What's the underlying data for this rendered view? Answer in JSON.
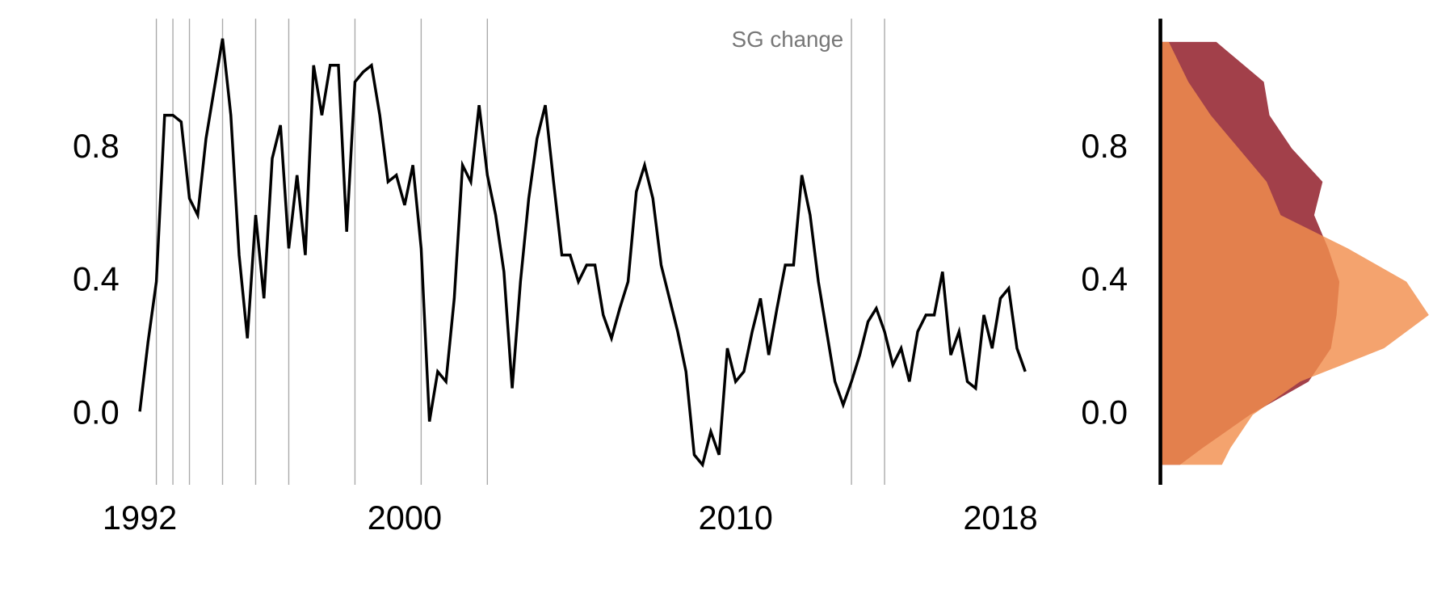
{
  "chart_data": [
    {
      "type": "line",
      "annotation": "SG change",
      "x": [
        1992,
        1992.25,
        1992.5,
        1992.75,
        1993,
        1993.25,
        1993.5,
        1993.75,
        1994,
        1994.25,
        1994.5,
        1994.75,
        1995,
        1995.25,
        1995.5,
        1995.75,
        1996,
        1996.25,
        1996.5,
        1996.75,
        1997,
        1997.25,
        1997.5,
        1997.75,
        1998,
        1998.25,
        1998.5,
        1998.75,
        1999,
        1999.25,
        1999.5,
        1999.75,
        2000,
        2000.25,
        2000.5,
        2000.75,
        2001,
        2001.25,
        2001.5,
        2001.75,
        2002,
        2002.25,
        2002.5,
        2002.75,
        2003,
        2003.25,
        2003.5,
        2003.75,
        2004,
        2004.25,
        2004.5,
        2004.75,
        2005,
        2005.25,
        2005.5,
        2005.75,
        2006,
        2006.25,
        2006.5,
        2006.75,
        2007,
        2007.25,
        2007.5,
        2007.75,
        2008,
        2008.25,
        2008.5,
        2008.75,
        2009,
        2009.25,
        2009.5,
        2009.75,
        2010,
        2010.25,
        2010.5,
        2010.75,
        2011,
        2011.25,
        2011.5,
        2011.75,
        2012,
        2012.25,
        2012.5,
        2012.75,
        2013,
        2013.25,
        2013.5,
        2013.75,
        2014,
        2014.25,
        2014.5,
        2014.75,
        2015,
        2015.25,
        2015.5,
        2015.75,
        2016,
        2016.25,
        2016.5,
        2016.75,
        2017,
        2017.25,
        2017.5,
        2017.75,
        2018,
        2018.25,
        2018.5,
        2018.75
      ],
      "series": [
        {
          "color": "#000000",
          "values": [
            0.01,
            0.22,
            0.4,
            0.9,
            0.9,
            0.88,
            0.65,
            0.6,
            0.83,
            0.98,
            1.13,
            0.9,
            0.48,
            0.23,
            0.6,
            0.35,
            0.77,
            0.87,
            0.5,
            0.72,
            0.48,
            1.05,
            0.9,
            1.05,
            1.05,
            0.55,
            1.0,
            1.03,
            1.05,
            0.9,
            0.7,
            0.72,
            0.63,
            0.75,
            0.5,
            -0.02,
            0.13,
            0.1,
            0.35,
            0.75,
            0.7,
            0.93,
            0.72,
            0.6,
            0.43,
            0.08,
            0.4,
            0.65,
            0.83,
            0.93,
            0.7,
            0.48,
            0.48,
            0.4,
            0.45,
            0.45,
            0.3,
            0.23,
            0.32,
            0.4,
            0.67,
            0.75,
            0.65,
            0.45,
            0.35,
            0.25,
            0.13,
            -0.12,
            -0.15,
            -0.05,
            -0.12,
            0.2,
            0.1,
            0.13,
            0.25,
            0.35,
            0.18,
            0.32,
            0.45,
            0.45,
            0.72,
            0.6,
            0.4,
            0.25,
            0.1,
            0.03,
            0.1,
            0.18,
            0.28,
            0.32,
            0.25,
            0.15,
            0.2,
            0.1,
            0.25,
            0.3,
            0.3,
            0.43,
            0.18,
            0.25,
            0.1,
            0.08,
            0.3,
            0.2,
            0.35,
            0.38,
            0.2,
            0.13
          ]
        }
      ],
      "events": [
        1992.5,
        1993,
        1993.5,
        1994.5,
        1995.5,
        1996.5,
        1998.5,
        2000.5,
        2002.5,
        2013.5,
        2014.5
      ],
      "event_color": "#aaaaaa",
      "xlim": [
        1992,
        2018.75
      ],
      "ylim": [
        -0.21,
        1.19
      ],
      "xticks": [
        1992,
        2000,
        2010,
        2018
      ],
      "yticks": [
        {
          "value": 0,
          "label": "0.0"
        },
        0.4,
        0.8
      ]
    },
    {
      "type": "density",
      "y": [
        1.12,
        1.0,
        0.9,
        0.8,
        0.7,
        0.6,
        0.5,
        0.4,
        0.3,
        0.2,
        0.1,
        0.0,
        -0.1,
        -0.15
      ],
      "series": [
        {
          "color": "#a2404a",
          "values": [
            0.2,
            0.37,
            0.39,
            0.47,
            0.58,
            0.55,
            0.6,
            0.64,
            0.63,
            0.61,
            0.53,
            0.32,
            0.15,
            0.07
          ]
        },
        {
          "color": "#f28f4e",
          "values": [
            0.03,
            0.1,
            0.18,
            0.28,
            0.38,
            0.43,
            0.67,
            0.88,
            0.96,
            0.8,
            0.5,
            0.33,
            0.25,
            0.22
          ]
        }
      ],
      "xlim": [
        0,
        1
      ],
      "ylim": [
        -0.21,
        1.19
      ],
      "yticks": [
        {
          "value": 0,
          "label": "0.0"
        },
        0.4,
        0.8
      ]
    }
  ]
}
